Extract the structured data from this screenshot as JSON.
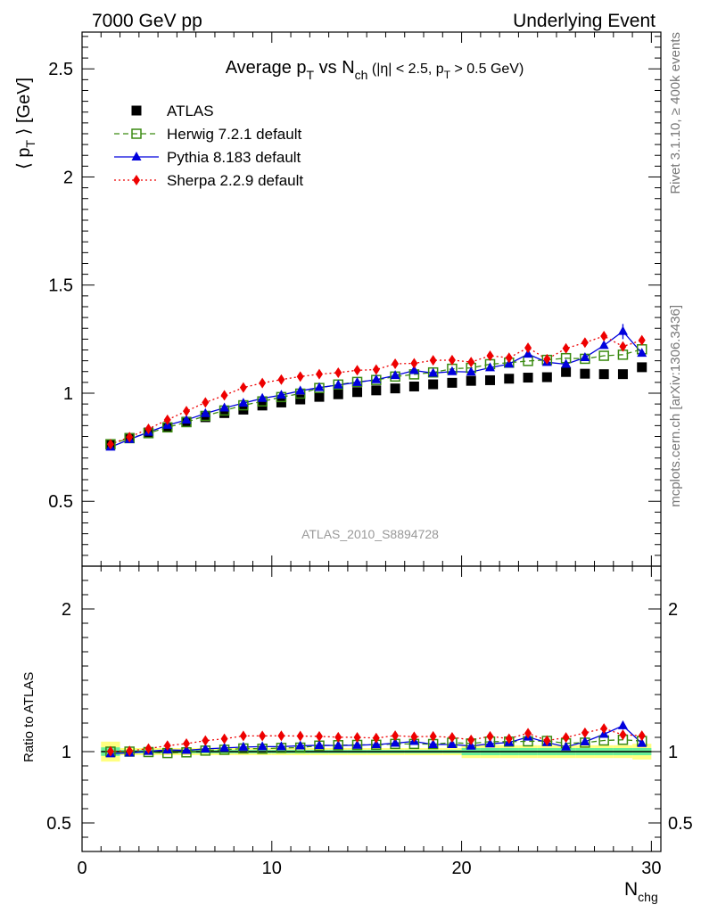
{
  "header": {
    "left": "7000 GeV pp",
    "right": "Underlying Event"
  },
  "side_labels": {
    "rivet": "Rivet 3.1.10, ≥ 400k events",
    "mcplots": "mcplots.cern.ch [arXiv:1306.3436]"
  },
  "colors": {
    "atlas": "#000000",
    "herwig": "#3a8a10",
    "pythia": "#0000dd",
    "sherpa": "#ee0000",
    "band_outer": "#ffff80",
    "band_inner": "#66ee99"
  },
  "chart_data": [
    {
      "type": "scatter",
      "title": "Average p_T vs N_ch (|η| < 2.5, p_T > 0.5 GeV)",
      "watermark": "ATLAS_2010_S8894728",
      "ylabel": "⟨ p_T ⟩ [GeV]",
      "xlim": [
        0,
        30.5
      ],
      "ylim": [
        0.2,
        2.67
      ],
      "yticks": [
        "0.5",
        "1",
        "1.5",
        "2",
        "2.5"
      ],
      "legend_placement": "top-left",
      "x": [
        1.5,
        2.5,
        3.5,
        4.5,
        5.5,
        6.5,
        7.5,
        8.5,
        9.5,
        10.5,
        11.5,
        12.5,
        13.5,
        14.5,
        15.5,
        16.5,
        17.5,
        18.5,
        19.5,
        20.5,
        21.5,
        22.5,
        23.5,
        24.5,
        25.5,
        26.5,
        27.5,
        28.5,
        29.5
      ],
      "series": [
        {
          "name": "ATLAS",
          "style": "marker",
          "values": [
            0.762,
            0.793,
            0.818,
            0.842,
            0.868,
            0.889,
            0.908,
            0.924,
            0.943,
            0.957,
            0.971,
            0.983,
            0.995,
            1.005,
            1.013,
            1.022,
            1.031,
            1.041,
            1.048,
            1.057,
            1.06,
            1.067,
            1.072,
            1.074,
            1.098,
            1.09,
            1.088,
            1.088,
            1.12
          ]
        },
        {
          "name": "Herwig 7.2.1 default",
          "style": "dashed",
          "values": [
            0.764,
            0.792,
            0.815,
            0.842,
            0.866,
            0.895,
            0.92,
            0.944,
            0.962,
            0.982,
            0.998,
            1.024,
            1.04,
            1.052,
            1.061,
            1.077,
            1.087,
            1.096,
            1.113,
            1.117,
            1.134,
            1.141,
            1.149,
            1.154,
            1.162,
            1.159,
            1.173,
            1.178,
            1.203
          ]
        },
        {
          "name": "Pythia 8.183 default",
          "style": "solid",
          "values": [
            0.751,
            0.786,
            0.82,
            0.852,
            0.876,
            0.906,
            0.932,
            0.954,
            0.976,
            0.991,
            1.011,
            1.026,
            1.038,
            1.05,
            1.063,
            1.082,
            1.105,
            1.093,
            1.1,
            1.098,
            1.118,
            1.135,
            1.181,
            1.143,
            1.134,
            1.165,
            1.221,
            1.286,
            1.185
          ]
        },
        {
          "name": "Sherpa 2.2.9 default",
          "style": "dotted",
          "values": [
            0.764,
            0.797,
            0.835,
            0.877,
            0.917,
            0.957,
            0.99,
            1.026,
            1.047,
            1.063,
            1.077,
            1.088,
            1.095,
            1.106,
            1.109,
            1.136,
            1.138,
            1.152,
            1.153,
            1.144,
            1.173,
            1.164,
            1.21,
            1.157,
            1.207,
            1.234,
            1.264,
            1.216,
            1.245
          ]
        }
      ]
    },
    {
      "type": "scatter",
      "ylabel": "Ratio to ATLAS",
      "xlabel": "N_chg",
      "xlim": [
        0,
        30.5
      ],
      "ylim": [
        0.3,
        2.3
      ],
      "xticks": [
        "0",
        "10",
        "20",
        "30"
      ],
      "yticks": [
        "0.5",
        "1",
        "2"
      ],
      "x": [
        1.5,
        2.5,
        3.5,
        4.5,
        5.5,
        6.5,
        7.5,
        8.5,
        9.5,
        10.5,
        11.5,
        12.5,
        13.5,
        14.5,
        15.5,
        16.5,
        17.5,
        18.5,
        19.5,
        20.5,
        21.5,
        22.5,
        23.5,
        24.5,
        25.5,
        26.5,
        27.5,
        28.5,
        29.5
      ],
      "series": [
        {
          "name": "Herwig 7.2.1 default",
          "style": "dashed",
          "values": [
            1.0,
            1.0,
            0.997,
            0.99,
            0.995,
            1.007,
            1.013,
            1.022,
            1.02,
            1.026,
            1.028,
            1.042,
            1.045,
            1.047,
            1.048,
            1.054,
            1.054,
            1.053,
            1.062,
            1.057,
            1.07,
            1.07,
            1.072,
            1.075,
            1.058,
            1.063,
            1.078,
            1.083,
            1.074
          ]
        },
        {
          "name": "Pythia 8.183 default",
          "style": "solid",
          "values": [
            0.985,
            0.991,
            1.002,
            1.012,
            1.009,
            1.019,
            1.026,
            1.032,
            1.035,
            1.035,
            1.041,
            1.044,
            1.043,
            1.045,
            1.049,
            1.059,
            1.072,
            1.05,
            1.05,
            1.039,
            1.055,
            1.064,
            1.102,
            1.064,
            1.033,
            1.069,
            1.122,
            1.182,
            1.058
          ]
        },
        {
          "name": "Sherpa 2.2.9 default",
          "style": "dotted",
          "values": [
            1.002,
            1.005,
            1.021,
            1.042,
            1.056,
            1.077,
            1.09,
            1.11,
            1.11,
            1.111,
            1.109,
            1.107,
            1.101,
            1.1,
            1.095,
            1.112,
            1.104,
            1.107,
            1.1,
            1.082,
            1.107,
            1.091,
            1.129,
            1.077,
            1.099,
            1.132,
            1.162,
            1.118,
            1.112
          ]
        }
      ],
      "band_inner": {
        "x_edges": [
          1,
          2,
          3,
          4,
          5,
          6,
          7,
          8,
          9,
          10,
          11,
          12,
          13,
          14,
          15,
          16,
          17,
          18,
          19,
          20,
          21,
          22,
          23,
          24,
          25,
          26,
          27,
          28,
          29,
          30
        ],
        "half_width": [
          0.03,
          0.012,
          0.012,
          0.012,
          0.012,
          0.012,
          0.012,
          0.012,
          0.012,
          0.012,
          0.012,
          0.012,
          0.012,
          0.012,
          0.012,
          0.012,
          0.012,
          0.012,
          0.012,
          0.025,
          0.025,
          0.025,
          0.025,
          0.025,
          0.025,
          0.025,
          0.025,
          0.025,
          0.025
        ]
      },
      "band_outer": {
        "x_edges": [
          1,
          2,
          3,
          4,
          5,
          6,
          7,
          8,
          9,
          10,
          11,
          12,
          13,
          14,
          15,
          16,
          17,
          18,
          19,
          20,
          21,
          22,
          23,
          24,
          25,
          26,
          27,
          28,
          29,
          30
        ],
        "half_width": [
          0.07,
          0.025,
          0.025,
          0.025,
          0.025,
          0.025,
          0.025,
          0.025,
          0.025,
          0.025,
          0.025,
          0.025,
          0.025,
          0.025,
          0.025,
          0.025,
          0.025,
          0.025,
          0.025,
          0.045,
          0.045,
          0.045,
          0.045,
          0.045,
          0.045,
          0.045,
          0.045,
          0.045,
          0.055
        ]
      }
    }
  ]
}
